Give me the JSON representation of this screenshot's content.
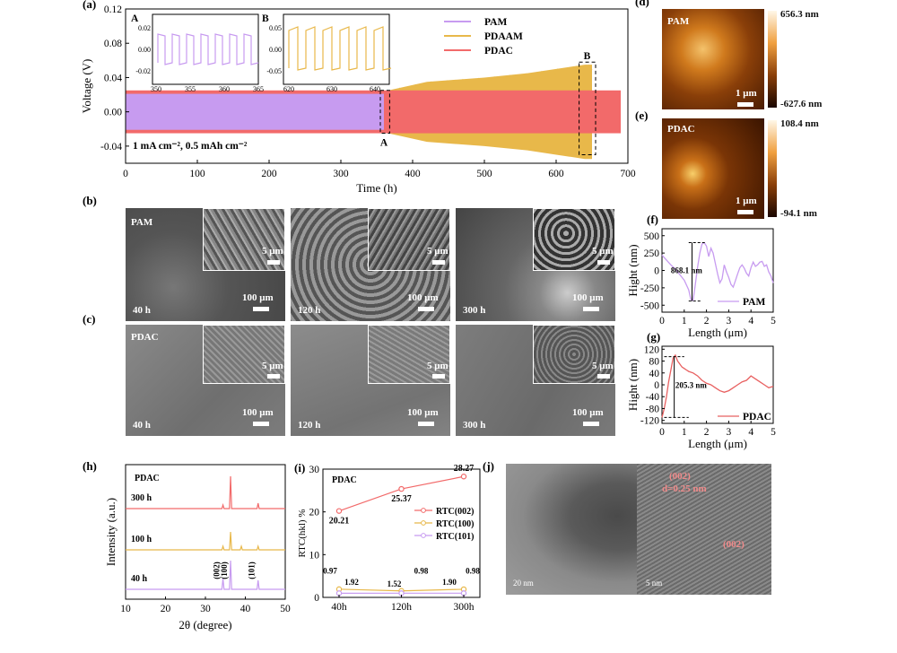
{
  "panel_labels": {
    "a": "(a)",
    "b": "(b)",
    "c": "(c)",
    "d": "(d)",
    "e": "(e)",
    "f": "(f)",
    "g": "(g)",
    "h": "(h)",
    "i": "(i)",
    "j": "(j)"
  },
  "colors": {
    "pam": "#c79bf0",
    "pdaam": "#e8b84a",
    "pdac": "#f26a6a",
    "red_line": "#e86060"
  },
  "panel_a": {
    "inset_A_label": "A",
    "inset_B_label": "B",
    "inset_A_x_ticks": [
      "350",
      "355",
      "360",
      "365"
    ],
    "inset_A_y_ticks": [
      "0.02",
      "0.00",
      "-0.02"
    ],
    "inset_B_x_ticks": [
      "620",
      "630",
      "640"
    ],
    "inset_B_y_ticks": [
      "0.05",
      "0.00",
      "-0.05"
    ],
    "box_A_label": "A",
    "box_B_label": "B",
    "condition": "1 mA cm⁻², 0.5 mAh cm⁻²"
  },
  "panel_b": {
    "sample": "PAM",
    "times": [
      "40 h",
      "120 h",
      "300 h"
    ],
    "scale_large": "100 μm",
    "scale_small": "5 μm"
  },
  "panel_c": {
    "sample": "PDAC",
    "times": [
      "40 h",
      "120 h",
      "300 h"
    ],
    "scale_large": "100 μm",
    "scale_small": "5 μm"
  },
  "panel_d": {
    "sample": "PAM",
    "max": "656.3 nm",
    "min": "-627.6 nm",
    "scale": "1 μm"
  },
  "panel_e": {
    "sample": "PDAC",
    "max": "108.4 nm",
    "min": "-94.1 nm",
    "scale": "1 μm"
  },
  "panel_h": {
    "sample": "PDAC",
    "times": [
      "300 h",
      "100 h",
      "40 h"
    ],
    "peaks": [
      "(002)",
      "(100)",
      "(101)"
    ]
  },
  "panel_i": {
    "sample": "PDAC"
  },
  "panel_j": {
    "annotation_1": "(002)",
    "annotation_2": "d=0.25 nm",
    "annotation_3": "(002)",
    "scale_left": "20 nm",
    "scale_right": "5 nm"
  },
  "chart_data": [
    {
      "id": "a",
      "type": "line",
      "xlabel": "Time (h)",
      "ylabel": "Voltage (V)",
      "xlim": [
        0,
        700
      ],
      "ylim": [
        -0.06,
        0.12
      ],
      "x_ticks": [
        0,
        100,
        200,
        300,
        400,
        500,
        600,
        700
      ],
      "y_ticks": [
        "-0.04",
        "0.00",
        "0.04",
        "0.08",
        "0.12"
      ],
      "series": [
        {
          "name": "PAM",
          "x": [
            0,
            360
          ],
          "y_range": [
            -0.021,
            0.021
          ]
        },
        {
          "name": "PDAAM",
          "x": [
            0,
            650
          ],
          "y_envelope_top": [
            [
              0,
              0.022
            ],
            [
              350,
              0.022
            ],
            [
              420,
              0.035
            ],
            [
              500,
              0.04
            ],
            [
              560,
              0.045
            ],
            [
              600,
              0.05
            ],
            [
              640,
              0.055
            ],
            [
              650,
              0.055
            ]
          ]
        },
        {
          "name": "PDAC",
          "x": [
            0,
            690
          ],
          "y_range": [
            -0.025,
            0.025
          ]
        }
      ]
    },
    {
      "id": "f",
      "type": "line",
      "xlabel": "Length (μm)",
      "ylabel": "Hight (nm)",
      "xlim": [
        0,
        5
      ],
      "ylim": [
        -600,
        600
      ],
      "x_ticks": [
        0,
        1,
        2,
        3,
        4,
        5
      ],
      "y_ticks": [
        -500,
        -250,
        0,
        250,
        500
      ],
      "series": [
        {
          "name": "PAM",
          "x": [
            0,
            0.2,
            0.4,
            0.6,
            0.8,
            1.0,
            1.2,
            1.3,
            1.4,
            1.5,
            1.6,
            1.7,
            1.8,
            1.9,
            2.0,
            2.1,
            2.2,
            2.3,
            2.4,
            2.5,
            2.6,
            2.7,
            2.8,
            2.9,
            3.0,
            3.1,
            3.2,
            3.3,
            3.4,
            3.5,
            3.6,
            3.7,
            3.8,
            3.9,
            4.0,
            4.1,
            4.2,
            4.3,
            4.4,
            4.5,
            4.6,
            4.7,
            4.8,
            4.9,
            5.0
          ],
          "y": [
            220,
            150,
            80,
            20,
            -60,
            -140,
            -280,
            -420,
            -430,
            -200,
            50,
            250,
            380,
            400,
            350,
            200,
            320,
            250,
            100,
            -50,
            -180,
            -120,
            80,
            -20,
            -100,
            -200,
            -240,
            -150,
            -50,
            40,
            80,
            30,
            -40,
            -80,
            40,
            120,
            60,
            80,
            120,
            130,
            60,
            80,
            -20,
            -80,
            -180
          ]
        }
      ],
      "annotation": "868.1 nm"
    },
    {
      "id": "g",
      "type": "line",
      "xlabel": "Length (μm)",
      "ylabel": "Hight (nm)",
      "xlim": [
        0,
        5
      ],
      "ylim": [
        -130,
        130
      ],
      "x_ticks": [
        0,
        1,
        2,
        3,
        4,
        5
      ],
      "y_ticks": [
        -120,
        -80,
        -40,
        0,
        40,
        80,
        120
      ],
      "series": [
        {
          "name": "PDAC",
          "x": [
            0,
            0.1,
            0.2,
            0.3,
            0.4,
            0.5,
            0.6,
            0.7,
            0.8,
            0.9,
            1.0,
            1.1,
            1.2,
            1.4,
            1.6,
            1.8,
            2.0,
            2.2,
            2.4,
            2.6,
            2.8,
            3.0,
            3.2,
            3.4,
            3.6,
            3.8,
            4.0,
            4.2,
            4.4,
            4.6,
            4.8,
            5.0
          ],
          "y": [
            -110,
            -80,
            -40,
            10,
            50,
            90,
            100,
            80,
            70,
            60,
            55,
            50,
            45,
            40,
            30,
            15,
            5,
            0,
            -10,
            -20,
            -25,
            -20,
            -10,
            0,
            10,
            15,
            30,
            20,
            10,
            0,
            -10,
            -5
          ]
        }
      ],
      "annotation": "205.3 nm"
    },
    {
      "id": "h",
      "type": "line",
      "xlabel": "2θ (degree)",
      "ylabel": "Intensity (a.u.)",
      "xlim": [
        10,
        50
      ],
      "x_ticks": [
        10,
        20,
        30,
        40,
        50
      ],
      "series": [
        {
          "name": "300 h",
          "peaks": [
            [
              34.4,
              1
            ],
            [
              36.3,
              9
            ],
            [
              43.2,
              1.5
            ]
          ]
        },
        {
          "name": "100 h",
          "peaks": [
            [
              34.4,
              1
            ],
            [
              36.3,
              5
            ],
            [
              39.0,
              1
            ],
            [
              43.2,
              1
            ]
          ]
        },
        {
          "name": "40 h",
          "peaks": [
            [
              34.4,
              3
            ],
            [
              36.3,
              8
            ],
            [
              43.2,
              2.5
            ]
          ]
        }
      ]
    },
    {
      "id": "i",
      "type": "line",
      "xlabel": "",
      "ylabel": "RTC(hkl) %",
      "categories": [
        "40h",
        "120h",
        "300h"
      ],
      "ylim": [
        0,
        30
      ],
      "y_ticks": [
        0,
        10,
        20,
        30
      ],
      "series": [
        {
          "name": "RTC(002)",
          "values": [
            20.21,
            25.37,
            28.27
          ]
        },
        {
          "name": "RTC(100)",
          "values": [
            1.92,
            1.52,
            1.9
          ]
        },
        {
          "name": "RTC(101)",
          "values": [
            0.97,
            0.98,
            0.98
          ]
        }
      ]
    }
  ]
}
